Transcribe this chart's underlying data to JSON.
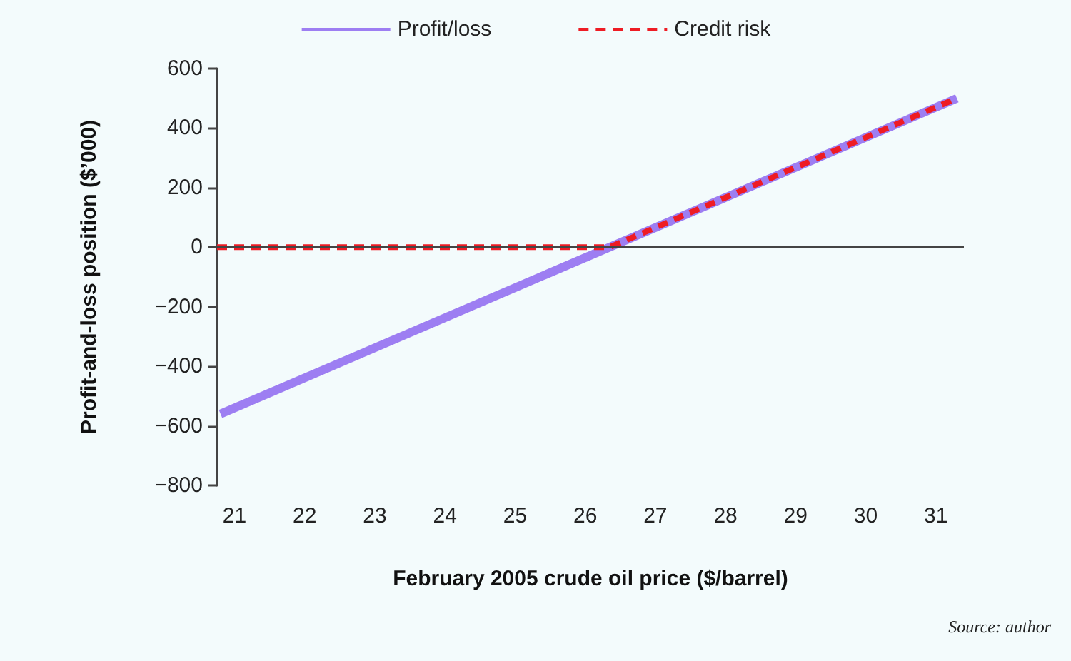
{
  "chart_data": {
    "type": "line",
    "xlabel": "February 2005 crude oil price ($/barrel)",
    "ylabel": "Profit-and-loss position ($’000)",
    "annotations": [
      "Source: author"
    ],
    "xlim": [
      20.75,
      31.4
    ],
    "xticks": [
      21,
      22,
      23,
      24,
      25,
      26,
      27,
      28,
      29,
      30,
      31
    ],
    "ylim": [
      -800,
      600
    ],
    "yticks": [
      -800,
      -600,
      -400,
      -200,
      0,
      200,
      400,
      600
    ],
    "series": [
      {
        "name": "Profit/loss",
        "color": "#9d7ef2",
        "x": [
          20.8,
          31.3
        ],
        "values": [
          -560,
          500
        ],
        "line_style": "solid"
      },
      {
        "name": "Credit risk",
        "color": "#ee1c24",
        "x": [
          20.75,
          26.35,
          31.3
        ],
        "values": [
          0,
          0,
          500
        ],
        "line_style": "dashed"
      }
    ],
    "ref_lines": [
      {
        "axis": "y",
        "value": 0,
        "color": "#444444"
      }
    ],
    "legend": "top",
    "grid": false,
    "marker": "none"
  }
}
